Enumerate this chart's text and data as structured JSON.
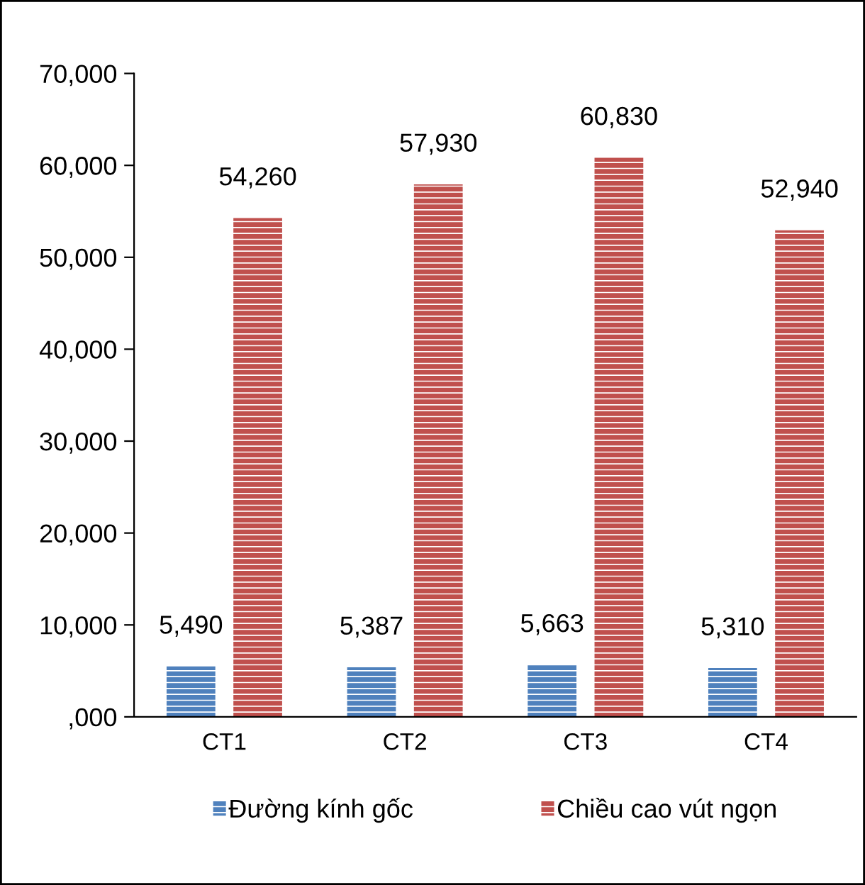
{
  "chart_data": {
    "type": "bar",
    "categories": [
      "CT1",
      "CT2",
      "CT3",
      "CT4"
    ],
    "series": [
      {
        "name": "Đường kính gốc",
        "color": "#4f81bd",
        "values": [
          5490,
          5387,
          5663,
          5310
        ],
        "value_labels": [
          "5,490",
          "5,387",
          "5,663",
          "5,310"
        ]
      },
      {
        "name": "Chiều cao vút ngọn",
        "color": "#c0504d",
        "values": [
          54260,
          57930,
          60830,
          52940
        ],
        "value_labels": [
          "54,260",
          "57,930",
          "60,830",
          "52,940"
        ]
      }
    ],
    "ylim": [
      0,
      70000
    ],
    "yticks": [
      {
        "value": 0,
        "label": ",000"
      },
      {
        "value": 10000,
        "label": "10,000"
      },
      {
        "value": 20000,
        "label": "20,000"
      },
      {
        "value": 30000,
        "label": "30,000"
      },
      {
        "value": 40000,
        "label": "40,000"
      },
      {
        "value": 50000,
        "label": "50,000"
      },
      {
        "value": 60000,
        "label": "60,000"
      },
      {
        "value": 70000,
        "label": "70,000"
      }
    ],
    "legend": "bottom",
    "grid": false
  }
}
